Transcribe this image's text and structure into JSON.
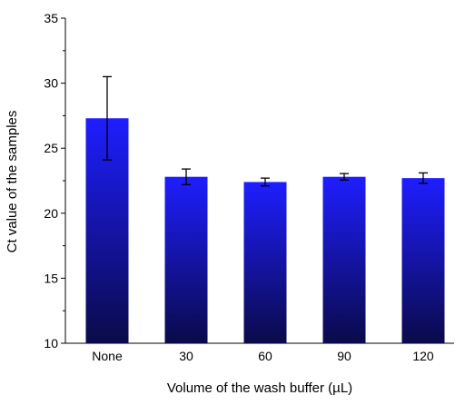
{
  "chart_data": {
    "type": "bar",
    "x_label": "Volume of the wash buffer (µL)",
    "y_label": "Ct value of the samples",
    "categories": [
      "None",
      "30",
      "60",
      "90",
      "120"
    ],
    "values": [
      27.3,
      22.8,
      22.4,
      22.8,
      22.7
    ],
    "errors": [
      3.2,
      0.6,
      0.3,
      0.25,
      0.4
    ],
    "color": "#1e1eff",
    "gradient_end": "#0a0a4a",
    "ylim": [
      10,
      35
    ],
    "yticks": [
      10,
      15,
      20,
      25,
      30,
      35
    ]
  }
}
